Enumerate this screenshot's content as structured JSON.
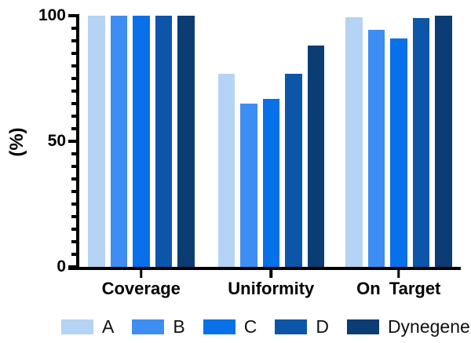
{
  "figure": {
    "background": "#ffffff",
    "text_color": "#000000"
  },
  "chart_data": {
    "type": "bar",
    "title": "",
    "xlabel": "",
    "ylabel": "(%)",
    "ylim": [
      0,
      100
    ],
    "yticks": [
      0,
      50,
      100
    ],
    "ytick_labels": [
      "0",
      "50",
      "100"
    ],
    "minor_tick_step": 5,
    "grid": false,
    "categories": [
      "Coverage",
      "Uniformity",
      "On Target"
    ],
    "series": [
      {
        "name": "A",
        "color": "#B5D3F4",
        "values": [
          100,
          77,
          99.5
        ]
      },
      {
        "name": "B",
        "color": "#3E8DF2",
        "values": [
          100,
          65,
          94.5
        ]
      },
      {
        "name": "C",
        "color": "#0870E8",
        "values": [
          100,
          67,
          91
        ]
      },
      {
        "name": "D",
        "color": "#0D55A8",
        "values": [
          100,
          77,
          99
        ]
      },
      {
        "name": "Dynegene",
        "color": "#0C3C74",
        "values": [
          100,
          88,
          100
        ]
      }
    ],
    "legend": {
      "position": "bottom",
      "labels": [
        "A",
        "B",
        "C",
        "D",
        "Dynegene"
      ]
    }
  }
}
